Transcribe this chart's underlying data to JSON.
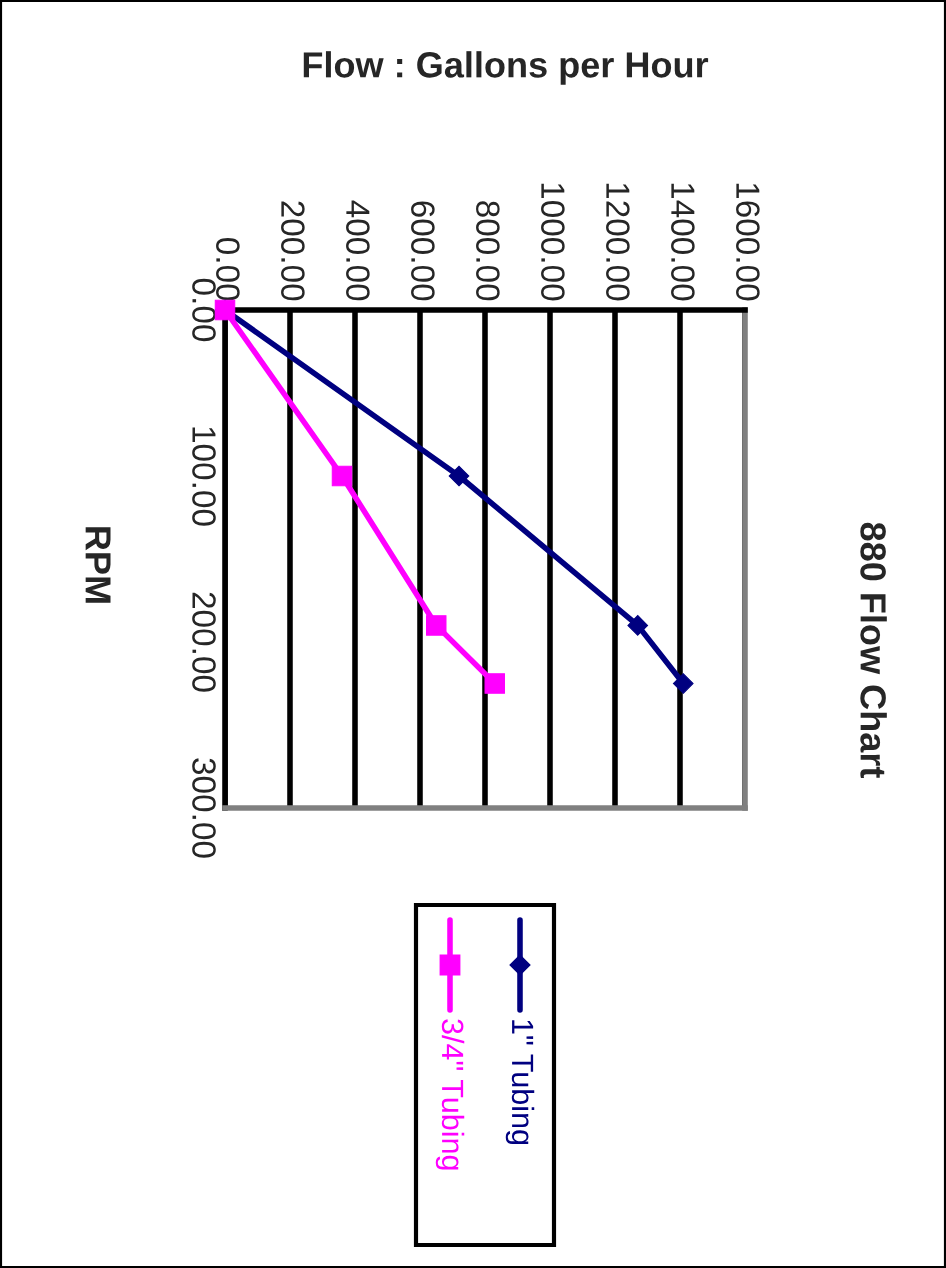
{
  "chart_data": {
    "type": "line",
    "title": "880 Flow Chart",
    "xlabel": "Flow : Gallons per Hour",
    "ylabel": "RPM",
    "series": [
      {
        "name": "1\" Tubing",
        "color": "#000080",
        "x": [
          0,
          720,
          1270,
          1410
        ],
        "values": [
          0,
          100,
          190,
          225
        ],
        "marker": "diamond"
      },
      {
        "name": "3/4\" Tubing",
        "color": "#ff00ff",
        "x": [
          0,
          360,
          650,
          830
        ],
        "values": [
          0,
          100,
          190,
          225
        ],
        "marker": "square"
      }
    ],
    "xlim": [
      0,
      1600
    ],
    "xticks": [
      {
        "value": 0,
        "label": "0.00"
      },
      {
        "value": 200,
        "label": "200.00"
      },
      {
        "value": 400,
        "label": "400.00"
      },
      {
        "value": 600,
        "label": "600.00"
      },
      {
        "value": 800,
        "label": "800.00"
      },
      {
        "value": 1000,
        "label": "1000.00"
      },
      {
        "value": 1200,
        "label": "1200.00"
      },
      {
        "value": 1400,
        "label": "1400.00"
      },
      {
        "value": 1600,
        "label": "1600.00"
      }
    ],
    "ylim": [
      300,
      0
    ],
    "yticks": [
      {
        "value": 0,
        "label": "0.00"
      },
      {
        "value": 100,
        "label": "100.00"
      },
      {
        "value": 200,
        "label": "200.00"
      },
      {
        "value": 300,
        "label": "300.00"
      }
    ],
    "grid": "x",
    "legend": "bottom",
    "line_style": "solid"
  }
}
